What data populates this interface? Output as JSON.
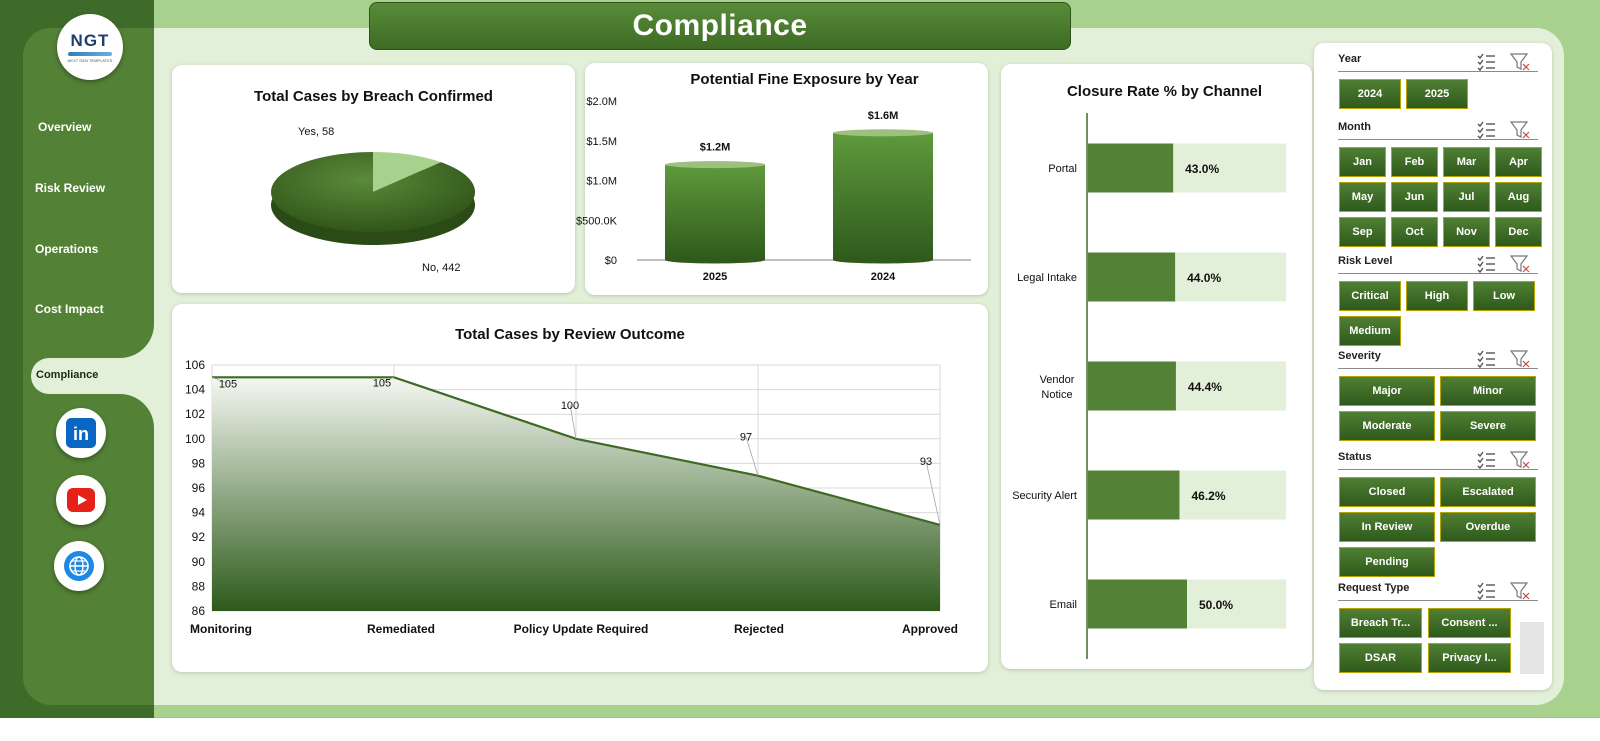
{
  "app": {
    "title": "Compliance",
    "logo": {
      "text": "NGT",
      "subtext": "NEXT GEN TEMPLATES"
    }
  },
  "nav": {
    "items": [
      {
        "label": "Overview"
      },
      {
        "label": "Risk Review"
      },
      {
        "label": "Operations"
      },
      {
        "label": "Cost Impact"
      },
      {
        "label": "Compliance"
      }
    ],
    "active": "Compliance",
    "social": [
      {
        "icon": "linkedin-icon",
        "text": "in",
        "color": "#0a66c2"
      },
      {
        "icon": "youtube-icon",
        "color": "#e62117"
      },
      {
        "icon": "globe-icon",
        "color": "#1e88e5"
      }
    ]
  },
  "colors": {
    "primary_green": "#538135",
    "dark_green": "#3f6b2a",
    "light_green": "#e2f0d9",
    "frame_green": "#a9d18e",
    "accent_border": "#b8a400"
  },
  "charts": {
    "breach": {
      "title": "Total Cases by Breach Confirmed"
    },
    "fine": {
      "title": "Potential Fine Exposure by Year"
    },
    "closure": {
      "title": "Closure  Rate % by Channel"
    },
    "review": {
      "title": "Total Cases by Review Outcome"
    }
  },
  "chart_data": [
    {
      "type": "pie",
      "title": "Total Cases by Breach Confirmed",
      "categories": [
        "Yes",
        "No"
      ],
      "values": [
        58,
        442
      ],
      "data_labels": [
        "Yes, 58",
        "No, 442"
      ],
      "colors": [
        "#a9d18e",
        "#3f6b24"
      ]
    },
    {
      "type": "bar",
      "title": "Potential Fine Exposure by Year",
      "categories": [
        "2025",
        "2024"
      ],
      "values": [
        1200000,
        1600000
      ],
      "data_labels": [
        "$1.2M",
        "$1.6M"
      ],
      "y_ticks": [
        "$0",
        "$500.0K",
        "$1.0M",
        "$1.5M",
        "$2.0M"
      ],
      "ylim": [
        0,
        2000000
      ],
      "grid": false
    },
    {
      "type": "bar",
      "orientation": "horizontal",
      "title": "Closure  Rate % by Channel",
      "categories": [
        "Portal",
        "Legal Intake",
        "Vendor Notice",
        "Security Alert",
        "Email"
      ],
      "values": [
        43.0,
        44.0,
        44.4,
        46.2,
        50.0
      ],
      "data_labels": [
        "43.0%",
        "44.0%",
        "44.4%",
        "46.2%",
        "50.0%"
      ],
      "xlim": [
        0,
        100
      ],
      "grid": false
    },
    {
      "type": "area",
      "title": "Total Cases by Review Outcome",
      "categories": [
        "Monitoring",
        "Remediated",
        "Policy Update Required",
        "Rejected",
        "Approved"
      ],
      "values": [
        105,
        105,
        100,
        97,
        93
      ],
      "ylim": [
        86,
        106
      ],
      "y_ticks": [
        86,
        88,
        90,
        92,
        94,
        96,
        98,
        100,
        102,
        104,
        106
      ],
      "grid": true
    }
  ],
  "slicers": [
    {
      "header": "Year",
      "options": [
        "2024",
        "2025"
      ]
    },
    {
      "header": "Month",
      "options": [
        "Jan",
        "Feb",
        "Mar",
        "Apr",
        "May",
        "Jun",
        "Jul",
        "Aug",
        "Sep",
        "Oct",
        "Nov",
        "Dec"
      ]
    },
    {
      "header": "Risk Level",
      "options": [
        "Critical",
        "High",
        "Low",
        "Medium"
      ]
    },
    {
      "header": "Severity",
      "options": [
        "Major",
        "Minor",
        "Moderate",
        "Severe"
      ]
    },
    {
      "header": "Status",
      "options": [
        "Closed",
        "Escalated",
        "In Review",
        "Overdue",
        "Pending"
      ]
    },
    {
      "header": "Request Type",
      "options": [
        "Breach Tr...",
        "Consent ...",
        "DSAR",
        "Privacy I..."
      ]
    }
  ]
}
